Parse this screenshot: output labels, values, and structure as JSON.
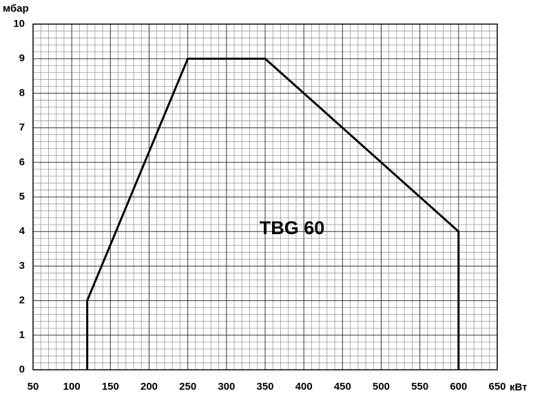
{
  "chart_data": {
    "type": "line",
    "annotation": "TBG 60",
    "ylabel": "мбар",
    "xlabel": "кВт",
    "x": [
      120,
      120,
      250,
      350,
      600,
      600
    ],
    "series": [
      {
        "color": "#000000",
        "values": [
          0,
          2,
          9,
          9,
          4,
          0
        ]
      }
    ],
    "xlim": [
      50,
      650
    ],
    "xticks": [
      50,
      100,
      150,
      200,
      250,
      300,
      350,
      400,
      450,
      500,
      550,
      600,
      650
    ],
    "ylim": [
      0,
      10
    ],
    "yticks": [
      0,
      1,
      2,
      3,
      4,
      5,
      6,
      7,
      8,
      9,
      10
    ],
    "grid": true,
    "minor_grid_divisions": 5
  }
}
